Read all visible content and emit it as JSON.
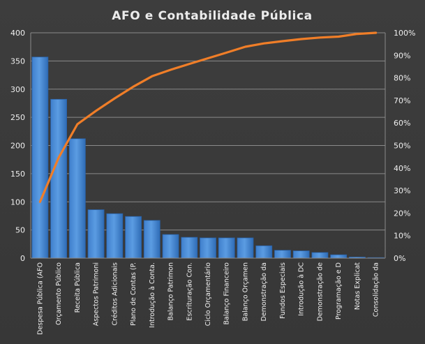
{
  "chart_data": {
    "type": "bar",
    "title": "AFO e Contabilidade  Pública",
    "categories": [
      "Despesa Pública (AFO",
      "Orçamento Público",
      "Receita Pública",
      "Aspectos Patrimoni",
      "Créditos Adicionais",
      "Plano de Contas (P.",
      "Introdução à Conta.",
      "Balanço Patrimon",
      "Escrituração Con.",
      "Ciclo Orçamentário",
      "Balanço Financeiro",
      "Balanço Orçamen",
      "Demonstração da",
      "Fundos Especiais",
      "Introdução à DC",
      "Demonstração de",
      "Programação e D",
      "Notas Explicat",
      "Consolidação da"
    ],
    "series": [
      {
        "type": "bar",
        "values": [
          357,
          282,
          212,
          86,
          79,
          74,
          67,
          42,
          37,
          36,
          36,
          36,
          22,
          14,
          13,
          10,
          6,
          2,
          1
        ]
      },
      {
        "type": "line",
        "axis": "secondary",
        "values": [
          25,
          44.6,
          59.4,
          65.4,
          70.9,
          76.1,
          80.7,
          83.6,
          86.2,
          88.7,
          91.2,
          93.8,
          95.3,
          96.3,
          97.2,
          97.9,
          98.3,
          99.5,
          100
        ]
      }
    ],
    "ylim": [
      0,
      400
    ],
    "yticks": [
      "0",
      "50",
      "100",
      "150",
      "200",
      "250",
      "300",
      "350",
      "400"
    ],
    "y2lim": [
      0,
      100
    ],
    "y2ticks": [
      "0%",
      "10%",
      "20%",
      "30%",
      "40%",
      "50%",
      "60%",
      "70%",
      "80%",
      "90%",
      "100%"
    ],
    "grid": true,
    "colors": {
      "background": "#3a3a3a",
      "bar": "#4f8fd6",
      "bar_dark": "#2a62a8",
      "line": "#f07e28",
      "grid": "#8a8a8a",
      "text": "#f0f0f0"
    }
  }
}
